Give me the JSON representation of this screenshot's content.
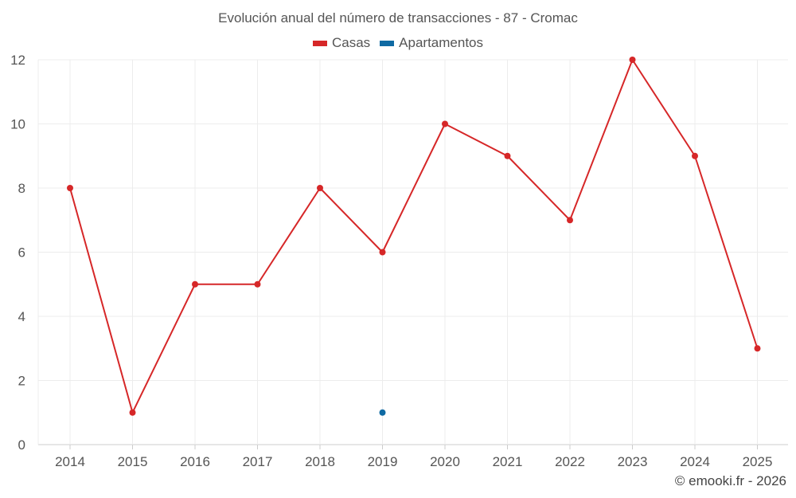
{
  "chart_data": {
    "type": "line",
    "title": "Evolución anual del número de transacciones - 87 - Cromac",
    "categories": [
      "2014",
      "2015",
      "2016",
      "2017",
      "2018",
      "2019",
      "2020",
      "2021",
      "2022",
      "2023",
      "2024",
      "2025"
    ],
    "series": [
      {
        "name": "Casas",
        "color": "#d62728",
        "values": [
          8,
          1,
          5,
          5,
          8,
          6,
          10,
          9,
          7,
          12,
          9,
          3
        ]
      },
      {
        "name": "Apartamentos",
        "color": "#0f6aa3",
        "values": [
          null,
          null,
          null,
          null,
          null,
          1,
          null,
          null,
          null,
          null,
          null,
          null
        ]
      }
    ],
    "ylim": [
      0,
      12
    ],
    "yticks": [
      0,
      2,
      4,
      6,
      8,
      10,
      12
    ],
    "grid": true,
    "legend_position": "top-center"
  },
  "credit": "© emooki.fr - 2026"
}
